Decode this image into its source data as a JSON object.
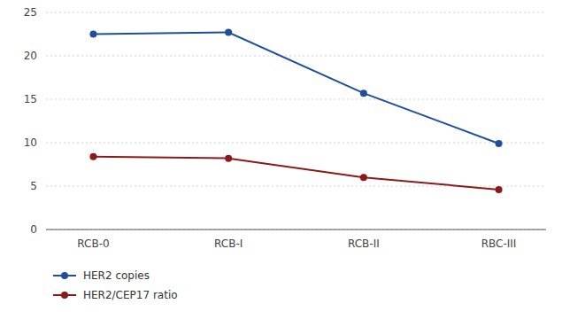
{
  "chart_data": {
    "type": "line",
    "categories": [
      "RCB-0",
      "RCB-I",
      "RCB-II",
      "RBC-III"
    ],
    "series": [
      {
        "name": "HER2 copies",
        "color": "#1f4e9c",
        "values": [
          22.5,
          22.7,
          15.7,
          9.9
        ]
      },
      {
        "name": "HER2/CEP17 ratio",
        "color": "#8b1a1a",
        "values": [
          8.4,
          8.2,
          6.0,
          4.6
        ]
      }
    ],
    "ylim": [
      0,
      25
    ],
    "yticks": [
      0,
      5,
      10,
      15,
      20,
      25
    ],
    "grid": true,
    "legend": "bottom",
    "marker": "circle"
  }
}
